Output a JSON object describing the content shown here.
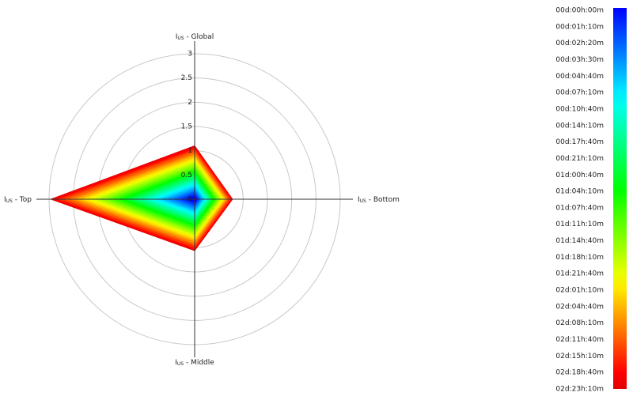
{
  "chart_data": {
    "type": "radar",
    "axes": [
      {
        "symbol": "I",
        "subscript": "US",
        "label": " - Global"
      },
      {
        "symbol": "I",
        "subscript": "US",
        "label": " - Bottom"
      },
      {
        "symbol": "I",
        "subscript": "US",
        "label": " - Middle"
      },
      {
        "symbol": "I",
        "subscript": "US",
        "label": " - Top"
      }
    ],
    "rlim": [
      0,
      3
    ],
    "rticks": [
      0,
      0.5,
      1,
      1.5,
      2,
      2.5,
      3
    ],
    "grid": true,
    "legend": "colorbar-right",
    "series": [
      {
        "name": "00d:00h:00m",
        "color": "#0000ff",
        "values": [
          0.06,
          0.05,
          0.06,
          0.18
        ]
      },
      {
        "name": "00d:01h:10m",
        "color": "#002eff",
        "values": [
          0.11,
          0.08,
          0.11,
          0.3
        ]
      },
      {
        "name": "00d:02h:20m",
        "color": "#005dff",
        "values": [
          0.16,
          0.11,
          0.15,
          0.42
        ]
      },
      {
        "name": "00d:03h:30m",
        "color": "#008bff",
        "values": [
          0.2,
          0.14,
          0.2,
          0.55
        ]
      },
      {
        "name": "00d:04h:40m",
        "color": "#00b9ff",
        "values": [
          0.25,
          0.18,
          0.24,
          0.68
        ]
      },
      {
        "name": "00d:07h:10m",
        "color": "#00e8ff",
        "values": [
          0.3,
          0.21,
          0.28,
          0.8
        ]
      },
      {
        "name": "00d:10h:40m",
        "color": "#00ffe8",
        "values": [
          0.34,
          0.24,
          0.33,
          0.93
        ]
      },
      {
        "name": "00d:14h:10m",
        "color": "#00ffb9",
        "values": [
          0.39,
          0.28,
          0.37,
          1.05
        ]
      },
      {
        "name": "00d:17h:40m",
        "color": "#00ff8b",
        "values": [
          0.43,
          0.31,
          0.42,
          1.18
        ]
      },
      {
        "name": "00d:21h:10m",
        "color": "#00ff5d",
        "values": [
          0.48,
          0.34,
          0.46,
          1.3
        ]
      },
      {
        "name": "01d:00h:40m",
        "color": "#00ff2e",
        "values": [
          0.53,
          0.37,
          0.51,
          1.43
        ]
      },
      {
        "name": "01d:04h:10m",
        "color": "#00ff00",
        "values": [
          0.57,
          0.41,
          0.55,
          1.55
        ]
      },
      {
        "name": "01d:07h:40m",
        "color": "#2eff00",
        "values": [
          0.62,
          0.44,
          0.6,
          1.68
        ]
      },
      {
        "name": "01d:11h:10m",
        "color": "#5dff00",
        "values": [
          0.66,
          0.47,
          0.64,
          1.8
        ]
      },
      {
        "name": "01d:14h:40m",
        "color": "#8bff00",
        "values": [
          0.71,
          0.51,
          0.68,
          1.93
        ]
      },
      {
        "name": "01d:18h:10m",
        "color": "#b9ff00",
        "values": [
          0.76,
          0.54,
          0.73,
          2.05
        ]
      },
      {
        "name": "01d:21h:40m",
        "color": "#e8ff00",
        "values": [
          0.8,
          0.57,
          0.77,
          2.18
        ]
      },
      {
        "name": "02d:01h:10m",
        "color": "#ffe800",
        "values": [
          0.85,
          0.61,
          0.82,
          2.3
        ]
      },
      {
        "name": "02d:04h:40m",
        "color": "#ffb900",
        "values": [
          0.9,
          0.64,
          0.86,
          2.43
        ]
      },
      {
        "name": "02d:08h:10m",
        "color": "#ff8b00",
        "values": [
          0.94,
          0.67,
          0.91,
          2.55
        ]
      },
      {
        "name": "02d:11h:40m",
        "color": "#ff5d00",
        "values": [
          0.99,
          0.7,
          0.95,
          2.68
        ]
      },
      {
        "name": "02d:15h:10m",
        "color": "#ff2e00",
        "values": [
          1.03,
          0.74,
          1.0,
          2.8
        ]
      },
      {
        "name": "02d:18h:40m",
        "color": "#ff0000",
        "values": [
          1.08,
          0.77,
          1.04,
          2.93
        ]
      },
      {
        "name": "02d:23h:10m",
        "color": "#e00000",
        "values": [
          1.1,
          0.78,
          1.06,
          2.96
        ]
      }
    ]
  }
}
